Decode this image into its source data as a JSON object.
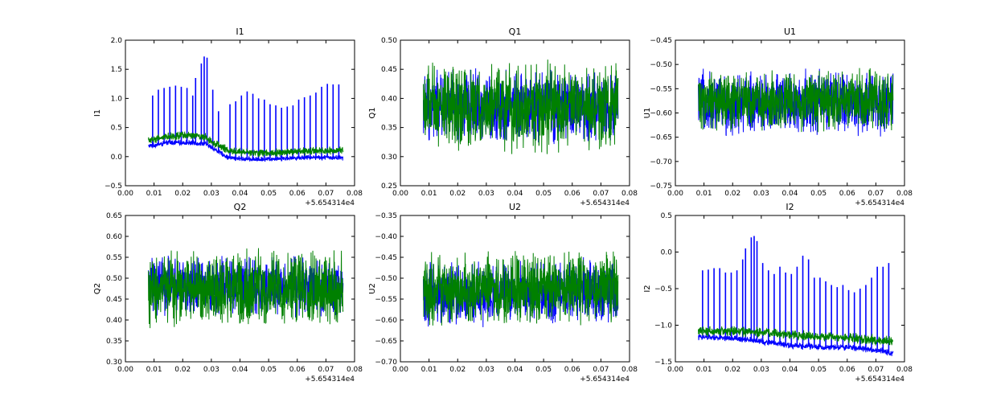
{
  "chart_data": [
    {
      "type": "line",
      "title": "I1",
      "ylabel": "I1",
      "xlim": [
        0.0,
        0.08
      ],
      "ylim": [
        -0.5,
        2.0
      ],
      "x_ticks": [
        "0.00",
        "0.01",
        "0.02",
        "0.03",
        "0.04",
        "0.05",
        "0.06",
        "0.07",
        "0.08"
      ],
      "y_ticks": [
        "−0.5",
        "0.0",
        "0.5",
        "1.0",
        "1.5",
        "2.0"
      ],
      "y_tick_values": [
        -0.5,
        0.0,
        0.5,
        1.0,
        1.5,
        2.0
      ],
      "x_offset_label": "+5.654314e4",
      "x_range": [
        0.008,
        0.076
      ],
      "series": [
        {
          "color": "#0000ff",
          "baseline": [
            [
              0.008,
              0.18
            ],
            [
              0.015,
              0.24
            ],
            [
              0.022,
              0.24
            ],
            [
              0.028,
              0.22
            ],
            [
              0.032,
              0.1
            ],
            [
              0.036,
              -0.02
            ],
            [
              0.045,
              -0.05
            ],
            [
              0.055,
              -0.03
            ],
            [
              0.065,
              -0.01
            ],
            [
              0.076,
              -0.02
            ]
          ],
          "noise": 0.05,
          "spikes": [
            [
              0.0095,
              1.05
            ],
            [
              0.0115,
              1.15
            ],
            [
              0.0135,
              1.18
            ],
            [
              0.0155,
              1.2
            ],
            [
              0.0175,
              1.22
            ],
            [
              0.0195,
              1.2
            ],
            [
              0.0215,
              1.18
            ],
            [
              0.0235,
              1.05
            ],
            [
              0.0245,
              1.35
            ],
            [
              0.0265,
              1.6
            ],
            [
              0.0275,
              1.72
            ],
            [
              0.0285,
              1.7
            ],
            [
              0.0305,
              1.15
            ],
            [
              0.0325,
              0.78
            ],
            [
              0.0365,
              0.9
            ],
            [
              0.0385,
              0.95
            ],
            [
              0.0405,
              1.05
            ],
            [
              0.0425,
              1.12
            ],
            [
              0.0445,
              1.08
            ],
            [
              0.0465,
              1.0
            ],
            [
              0.0485,
              0.98
            ],
            [
              0.0505,
              0.9
            ],
            [
              0.0525,
              0.88
            ],
            [
              0.0545,
              0.84
            ],
            [
              0.0565,
              0.86
            ],
            [
              0.0585,
              0.88
            ],
            [
              0.0605,
              0.98
            ],
            [
              0.0625,
              1.02
            ],
            [
              0.0645,
              1.05
            ],
            [
              0.0665,
              1.1
            ],
            [
              0.0685,
              1.2
            ],
            [
              0.0705,
              1.25
            ],
            [
              0.0725,
              1.24
            ],
            [
              0.0745,
              1.24
            ]
          ]
        },
        {
          "color": "#008000",
          "baseline": [
            [
              0.008,
              0.28
            ],
            [
              0.015,
              0.35
            ],
            [
              0.022,
              0.36
            ],
            [
              0.028,
              0.34
            ],
            [
              0.032,
              0.2
            ],
            [
              0.036,
              0.1
            ],
            [
              0.045,
              0.06
            ],
            [
              0.055,
              0.08
            ],
            [
              0.065,
              0.09
            ],
            [
              0.076,
              0.1
            ]
          ],
          "noise": 0.08,
          "spikes": []
        }
      ]
    },
    {
      "type": "line",
      "title": "Q1",
      "ylabel": "Q1",
      "xlim": [
        0.0,
        0.08
      ],
      "ylim": [
        0.25,
        0.5
      ],
      "x_ticks": [
        "0.00",
        "0.01",
        "0.02",
        "0.03",
        "0.04",
        "0.05",
        "0.06",
        "0.07",
        "0.08"
      ],
      "y_ticks": [
        "0.25",
        "0.30",
        "0.35",
        "0.40",
        "0.45",
        "0.50"
      ],
      "y_tick_values": [
        0.25,
        0.3,
        0.35,
        0.4,
        0.45,
        0.5
      ],
      "x_offset_label": "+5.654314e4",
      "x_range": [
        0.008,
        0.076
      ],
      "series": [
        {
          "color": "#0000ff",
          "baseline": [
            [
              0.008,
              0.385
            ],
            [
              0.076,
              0.385
            ]
          ],
          "noise": 0.07,
          "spikes": []
        },
        {
          "color": "#008000",
          "baseline": [
            [
              0.008,
              0.385
            ],
            [
              0.076,
              0.385
            ]
          ],
          "noise": 0.085,
          "spikes": []
        }
      ]
    },
    {
      "type": "line",
      "title": "U1",
      "ylabel": "U1",
      "xlim": [
        0.0,
        0.08
      ],
      "ylim": [
        -0.75,
        -0.45
      ],
      "x_ticks": [
        "0.00",
        "0.01",
        "0.02",
        "0.03",
        "0.04",
        "0.05",
        "0.06",
        "0.07",
        "0.08"
      ],
      "y_ticks": [
        "−0.75",
        "−0.70",
        "−0.65",
        "−0.60",
        "−0.55",
        "−0.50",
        "−0.45"
      ],
      "y_tick_values": [
        -0.75,
        -0.7,
        -0.65,
        -0.6,
        -0.55,
        -0.5,
        -0.45
      ],
      "x_offset_label": "+5.654314e4",
      "x_range": [
        0.008,
        0.076
      ],
      "series": [
        {
          "color": "#0000ff",
          "baseline": [
            [
              0.008,
              -0.58
            ],
            [
              0.076,
              -0.58
            ]
          ],
          "noise": 0.075,
          "spikes": []
        },
        {
          "color": "#008000",
          "baseline": [
            [
              0.008,
              -0.575
            ],
            [
              0.076,
              -0.575
            ]
          ],
          "noise": 0.07,
          "spikes": []
        }
      ]
    },
    {
      "type": "line",
      "title": "Q2",
      "ylabel": "Q2",
      "xlim": [
        0.0,
        0.08
      ],
      "ylim": [
        0.3,
        0.65
      ],
      "x_ticks": [
        "0.00",
        "0.01",
        "0.02",
        "0.03",
        "0.04",
        "0.05",
        "0.06",
        "0.07",
        "0.08"
      ],
      "y_ticks": [
        "0.30",
        "0.35",
        "0.40",
        "0.45",
        "0.50",
        "0.55",
        "0.60",
        "0.65"
      ],
      "y_tick_values": [
        0.3,
        0.35,
        0.4,
        0.45,
        0.5,
        0.55,
        0.6,
        0.65
      ],
      "x_offset_label": "+5.654314e4",
      "x_range": [
        0.008,
        0.076
      ],
      "series": [
        {
          "color": "#0000ff",
          "baseline": [
            [
              0.008,
              0.48
            ],
            [
              0.076,
              0.48
            ]
          ],
          "noise": 0.08,
          "spikes": []
        },
        {
          "color": "#008000",
          "baseline": [
            [
              0.008,
              0.475
            ],
            [
              0.076,
              0.475
            ]
          ],
          "noise": 0.1,
          "spikes": []
        }
      ]
    },
    {
      "type": "line",
      "title": "U2",
      "ylabel": "U2",
      "xlim": [
        0.0,
        0.08
      ],
      "ylim": [
        -0.7,
        -0.35
      ],
      "x_ticks": [
        "0.00",
        "0.01",
        "0.02",
        "0.03",
        "0.04",
        "0.05",
        "0.06",
        "0.07",
        "0.08"
      ],
      "y_ticks": [
        "−0.70",
        "−0.65",
        "−0.60",
        "−0.55",
        "−0.50",
        "−0.45",
        "−0.40",
        "−0.35"
      ],
      "y_tick_values": [
        -0.7,
        -0.65,
        -0.6,
        -0.55,
        -0.5,
        -0.45,
        -0.4,
        -0.35
      ],
      "x_offset_label": "+5.654314e4",
      "x_range": [
        0.008,
        0.076
      ],
      "series": [
        {
          "color": "#0000ff",
          "baseline": [
            [
              0.008,
              -0.54
            ],
            [
              0.076,
              -0.53
            ]
          ],
          "noise": 0.085,
          "spikes": []
        },
        {
          "color": "#008000",
          "baseline": [
            [
              0.008,
              -0.53
            ],
            [
              0.076,
              -0.52
            ]
          ],
          "noise": 0.095,
          "spikes": []
        }
      ]
    },
    {
      "type": "line",
      "title": "I2",
      "ylabel": "I2",
      "xlim": [
        0.0,
        0.08
      ],
      "ylim": [
        -1.5,
        0.5
      ],
      "x_ticks": [
        "0.00",
        "0.01",
        "0.02",
        "0.03",
        "0.04",
        "0.05",
        "0.06",
        "0.07",
        "0.08"
      ],
      "y_ticks": [
        "−1.5",
        "−1.0",
        "−0.5",
        "0.0",
        "0.5"
      ],
      "y_tick_values": [
        -1.5,
        -1.0,
        -0.5,
        0.0,
        0.5
      ],
      "x_offset_label": "+5.654314e4",
      "x_range": [
        0.008,
        0.076
      ],
      "series": [
        {
          "color": "#0000ff",
          "baseline": [
            [
              0.008,
              -1.16
            ],
            [
              0.02,
              -1.18
            ],
            [
              0.03,
              -1.22
            ],
            [
              0.04,
              -1.28
            ],
            [
              0.05,
              -1.3
            ],
            [
              0.06,
              -1.3
            ],
            [
              0.07,
              -1.34
            ],
            [
              0.076,
              -1.38
            ]
          ],
          "noise": 0.05,
          "spikes": [
            [
              0.0095,
              -0.25
            ],
            [
              0.0115,
              -0.24
            ],
            [
              0.0135,
              -0.22
            ],
            [
              0.0155,
              -0.22
            ],
            [
              0.0175,
              -0.28
            ],
            [
              0.0195,
              -0.28
            ],
            [
              0.0215,
              -0.25
            ],
            [
              0.0235,
              -0.1
            ],
            [
              0.0245,
              0.05
            ],
            [
              0.0265,
              0.2
            ],
            [
              0.0275,
              0.22
            ],
            [
              0.0285,
              0.15
            ],
            [
              0.0305,
              -0.15
            ],
            [
              0.0325,
              -0.25
            ],
            [
              0.0345,
              -0.3
            ],
            [
              0.0365,
              -0.2
            ],
            [
              0.0385,
              -0.28
            ],
            [
              0.0405,
              -0.3
            ],
            [
              0.0425,
              -0.2
            ],
            [
              0.0445,
              -0.05
            ],
            [
              0.0465,
              -0.1
            ],
            [
              0.0485,
              -0.35
            ],
            [
              0.0505,
              -0.35
            ],
            [
              0.0525,
              -0.4
            ],
            [
              0.0545,
              -0.45
            ],
            [
              0.0565,
              -0.48
            ],
            [
              0.0585,
              -0.45
            ],
            [
              0.0605,
              -0.52
            ],
            [
              0.0625,
              -0.55
            ],
            [
              0.0645,
              -0.5
            ],
            [
              0.0665,
              -0.45
            ],
            [
              0.0685,
              -0.35
            ],
            [
              0.0705,
              -0.2
            ],
            [
              0.0725,
              -0.2
            ],
            [
              0.0745,
              -0.15
            ]
          ]
        },
        {
          "color": "#008000",
          "baseline": [
            [
              0.008,
              -1.08
            ],
            [
              0.02,
              -1.08
            ],
            [
              0.03,
              -1.1
            ],
            [
              0.04,
              -1.13
            ],
            [
              0.05,
              -1.15
            ],
            [
              0.06,
              -1.17
            ],
            [
              0.07,
              -1.2
            ],
            [
              0.076,
              -1.22
            ]
          ],
          "noise": 0.08,
          "spikes": []
        }
      ]
    }
  ]
}
